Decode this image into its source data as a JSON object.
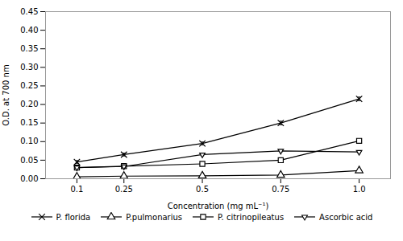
{
  "chart_data": {
    "type": "line",
    "xlabel": "Concentration (mg mL⁻¹)",
    "ylabel": "O.D. at 700 nm",
    "x": [
      0.1,
      0.25,
      0.5,
      0.75,
      1.0
    ],
    "series": [
      {
        "name": "P. florida",
        "color": "#000000",
        "marker": "x",
        "values": [
          0.045,
          0.065,
          0.095,
          0.15,
          0.215
        ],
        "yerr": [
          0.004,
          0.004,
          0.004,
          0.005,
          0.005
        ]
      },
      {
        "name": "P.pulmonarius",
        "color": "#000000",
        "marker": "triangle-up",
        "values": [
          0.005,
          0.007,
          0.008,
          0.01,
          0.022
        ],
        "yerr": [
          0.001,
          0.001,
          0.001,
          0.001,
          0.002
        ]
      },
      {
        "name": "P. citrinopileatus",
        "color": "#000000",
        "marker": "square",
        "values": [
          0.03,
          0.034,
          0.04,
          0.05,
          0.102
        ],
        "yerr": [
          0.002,
          0.002,
          0.002,
          0.003,
          0.004
        ]
      },
      {
        "name": "Ascorbic acid",
        "color": "#000000",
        "marker": "triangle-down",
        "values": [
          0.03,
          0.033,
          0.065,
          0.075,
          0.072
        ],
        "yerr": [
          0.002,
          0.002,
          0.003,
          0.003,
          0.003
        ]
      }
    ],
    "xlim": [
      0,
      1.1
    ],
    "xticks": [
      0.1,
      0.25,
      0.5,
      0.75,
      {
        "value": 1.0,
        "label": "1.0"
      }
    ],
    "ylim": [
      0,
      0.45
    ],
    "yticks": [
      {
        "value": 0,
        "label": "0.00"
      },
      0.05,
      {
        "value": 0.1,
        "label": "0.10"
      },
      0.15,
      {
        "value": 0.2,
        "label": "0.20"
      },
      0.25,
      {
        "value": 0.3,
        "label": "0.30"
      },
      0.35,
      {
        "value": 0.4,
        "label": "0.40"
      },
      0.45
    ]
  }
}
